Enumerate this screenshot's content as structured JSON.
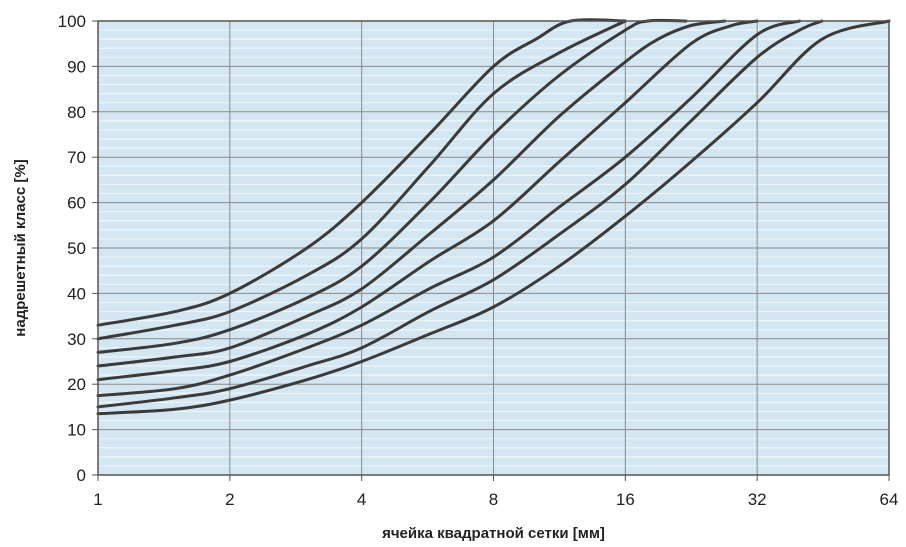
{
  "chart_data": {
    "type": "line",
    "title": "",
    "xlabel": "ячейка квадратной сетки [мм]",
    "ylabel": "надрешетный класс [%]",
    "x_scale": "log2",
    "xlim": [
      1,
      64
    ],
    "ylim": [
      0,
      100
    ],
    "x_ticks": [
      1,
      2,
      4,
      8,
      16,
      32,
      64
    ],
    "x_tick_labels": [
      "1",
      "2",
      "4",
      "8",
      "16",
      "32",
      "64"
    ],
    "y_ticks": [
      0,
      10,
      20,
      30,
      40,
      50,
      60,
      70,
      80,
      90,
      100
    ],
    "y_tick_labels": [
      "0",
      "10",
      "20",
      "30",
      "40",
      "50",
      "60",
      "70",
      "80",
      "90",
      "100"
    ],
    "grid": {
      "major": true,
      "minor_horizontal_step": 2
    },
    "colors": {
      "plot_background": "#d4e6f1",
      "minor_grid": "#eef5fa",
      "major_grid": "#8a8a8a",
      "lines": "#3a3a3a",
      "frame": "#555555"
    },
    "series": [
      {
        "x": [
          1,
          1.5,
          2,
          3,
          4,
          5.7,
          8,
          10,
          12,
          16
        ],
        "y": [
          33,
          36,
          40,
          50,
          60,
          75,
          90,
          96,
          100,
          100
        ]
      },
      {
        "x": [
          1,
          1.5,
          2,
          3,
          4,
          5.7,
          8,
          11.3,
          16
        ],
        "y": [
          30,
          33,
          36,
          44,
          52,
          68,
          84,
          93,
          100
        ]
      },
      {
        "x": [
          1,
          1.5,
          2,
          3,
          4,
          5.7,
          8,
          11.3,
          16,
          18,
          22
        ],
        "y": [
          27,
          29,
          32,
          39,
          46,
          60,
          75,
          88,
          98,
          100,
          100
        ]
      },
      {
        "x": [
          1,
          1.5,
          2,
          3,
          4,
          5.7,
          8,
          11.3,
          16,
          19,
          22.6,
          27
        ],
        "y": [
          24,
          26,
          28,
          35,
          41,
          53,
          65,
          79,
          91,
          96,
          99,
          100
        ]
      },
      {
        "x": [
          1,
          1.5,
          2,
          3,
          4,
          5.7,
          8,
          11.3,
          16,
          22.6,
          28,
          32
        ],
        "y": [
          21,
          23,
          25,
          31,
          37,
          47,
          56,
          69,
          82,
          95,
          99,
          100
        ]
      },
      {
        "x": [
          1,
          1.5,
          2,
          3,
          4,
          5.7,
          8,
          11.3,
          16,
          22.6,
          32,
          40
        ],
        "y": [
          17.5,
          19,
          22,
          28,
          33,
          41,
          48,
          59,
          70,
          83,
          97,
          100
        ]
      },
      {
        "x": [
          1,
          1.5,
          2,
          3,
          4,
          5.7,
          8,
          11.3,
          16,
          22.6,
          32,
          40,
          45
        ],
        "y": [
          15,
          17,
          19,
          24,
          28,
          36,
          43,
          53,
          64,
          78,
          92,
          98,
          100
        ]
      },
      {
        "x": [
          1,
          1.5,
          2,
          3,
          4,
          5.7,
          8,
          11.3,
          16,
          22.6,
          32,
          45,
          64
        ],
        "y": [
          13.5,
          14.5,
          16.5,
          21,
          25,
          31,
          37,
          46,
          57,
          69,
          82,
          96,
          100
        ]
      }
    ]
  }
}
